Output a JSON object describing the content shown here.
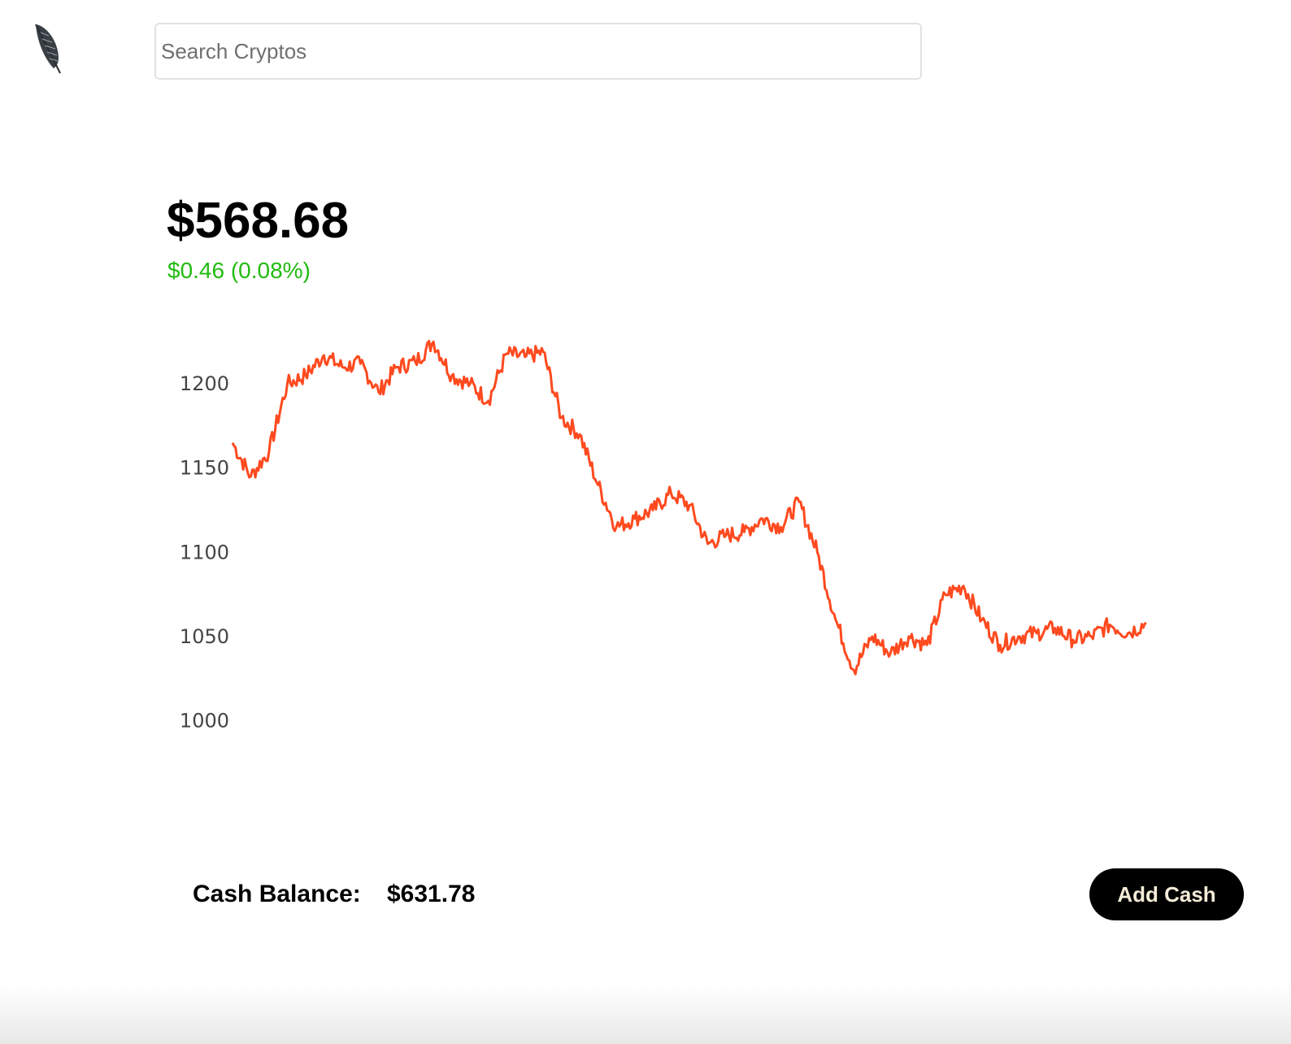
{
  "header": {
    "logo_icon": "feather-icon",
    "search": {
      "placeholder": "Search Cryptos",
      "value": ""
    }
  },
  "portfolio": {
    "price": "$568.68",
    "change_text": "$0.46 (0.08%)",
    "change_color": "#22bb11"
  },
  "chart_data": {
    "type": "line",
    "line_color": "#ff4a1f",
    "ylim": [
      950,
      1230
    ],
    "yticks": [
      1000,
      1050,
      1100,
      1150,
      1200
    ],
    "x": [
      0,
      2,
      4,
      6,
      8,
      10,
      12,
      14,
      16,
      18,
      20,
      22,
      24,
      26,
      28,
      30,
      32,
      34,
      36,
      38,
      40,
      42,
      44,
      46,
      48,
      50,
      52,
      54,
      56,
      58,
      60,
      62,
      64,
      66,
      68,
      70,
      72,
      74,
      76,
      78,
      80,
      82,
      84,
      86,
      88,
      90,
      92,
      94,
      96,
      98,
      100
    ],
    "series": [
      {
        "values": [
          1165,
          1145,
          1160,
          1200,
          1205,
          1217,
          1210,
          1212,
          1195,
          1210,
          1213,
          1225,
          1205,
          1200,
          1190,
          1218,
          1216,
          1219,
          1180,
          1170,
          1140,
          1115,
          1120,
          1125,
          1135,
          1128,
          1105,
          1110,
          1112,
          1120,
          1115,
          1130,
          1100,
          1060,
          1030,
          1050,
          1040,
          1050,
          1045,
          1075,
          1080,
          1060,
          1045,
          1050,
          1052,
          1055,
          1048,
          1050,
          1057,
          1052,
          1058
        ]
      }
    ]
  },
  "cash": {
    "label": "Cash Balance:",
    "value": "$631.78"
  },
  "actions": {
    "add_cash_label": "Add Cash"
  }
}
